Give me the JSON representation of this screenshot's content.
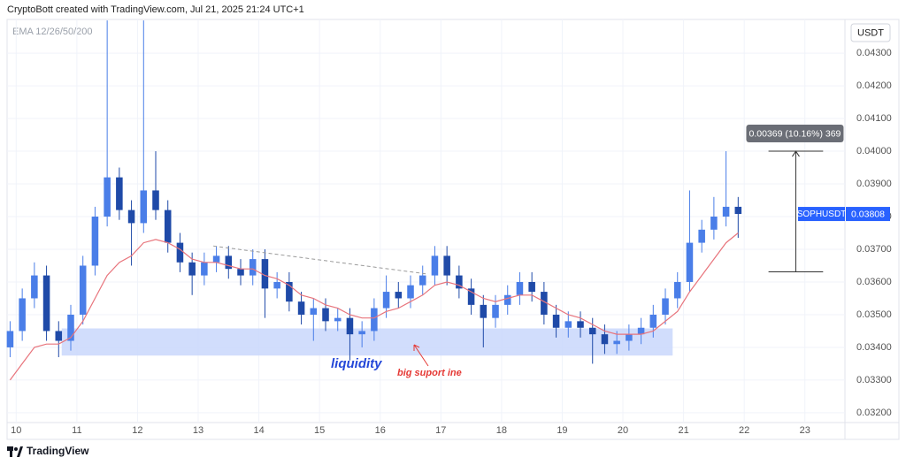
{
  "header": "CryptoBott created with TradingView.com, Jul 21, 2025 21:24 UTC+1",
  "footer": "TradingView",
  "chart_data": {
    "type": "candlestick",
    "currency": "USDT",
    "x": [
      9.9,
      10.1,
      10.3,
      10.5,
      10.7,
      10.9,
      11.1,
      11.3,
      11.5,
      11.7,
      11.9,
      12.1,
      12.3,
      12.5,
      12.7,
      12.9,
      13.1,
      13.3,
      13.5,
      13.7,
      13.9,
      14.1,
      14.3,
      14.5,
      14.7,
      14.9,
      15.1,
      15.3,
      15.5,
      15.7,
      15.9,
      16.1,
      16.3,
      16.5,
      16.7,
      16.9,
      17.1,
      17.3,
      17.5,
      17.7,
      17.9,
      18.1,
      18.3,
      18.5,
      18.7,
      18.9,
      19.1,
      19.3,
      19.5,
      19.7,
      19.9,
      20.1,
      20.3,
      20.5,
      20.7,
      20.9,
      21.1,
      21.3,
      21.5,
      21.7,
      21.9
    ],
    "open": [
      0.034,
      0.0345,
      0.0355,
      0.0362,
      0.0345,
      0.0342,
      0.035,
      0.0365,
      0.038,
      0.0392,
      0.0382,
      0.0378,
      0.0388,
      0.0382,
      0.0372,
      0.0366,
      0.0362,
      0.0366,
      0.0368,
      0.0364,
      0.0362,
      0.0367,
      0.0358,
      0.036,
      0.0354,
      0.035,
      0.0352,
      0.0348,
      0.0349,
      0.0344,
      0.0345,
      0.0352,
      0.0357,
      0.0355,
      0.0359,
      0.0362,
      0.0368,
      0.0362,
      0.0358,
      0.0353,
      0.0349,
      0.0353,
      0.0356,
      0.036,
      0.0357,
      0.035,
      0.0346,
      0.0348,
      0.0346,
      0.0344,
      0.0341,
      0.0342,
      0.0344,
      0.0346,
      0.035,
      0.0355,
      0.036,
      0.0372,
      0.0376,
      0.038,
      0.0383
    ],
    "high": [
      0.0348,
      0.0358,
      0.0366,
      0.0365,
      0.0348,
      0.0353,
      0.0368,
      0.0383,
      0.044,
      0.0395,
      0.0385,
      0.044,
      0.04,
      0.0385,
      0.0375,
      0.0369,
      0.0369,
      0.0371,
      0.0371,
      0.0367,
      0.037,
      0.037,
      0.0363,
      0.0363,
      0.0357,
      0.0355,
      0.0355,
      0.0352,
      0.0352,
      0.0348,
      0.0355,
      0.0362,
      0.036,
      0.0362,
      0.0365,
      0.0371,
      0.0371,
      0.0365,
      0.0361,
      0.0356,
      0.0356,
      0.0359,
      0.0363,
      0.0363,
      0.036,
      0.0353,
      0.0351,
      0.0351,
      0.0349,
      0.0347,
      0.0345,
      0.0347,
      0.0349,
      0.0353,
      0.0358,
      0.0363,
      0.0388,
      0.0379,
      0.0386,
      0.04,
      0.0386
    ],
    "low": [
      0.0337,
      0.0342,
      0.0352,
      0.0342,
      0.0337,
      0.0339,
      0.0347,
      0.0362,
      0.0377,
      0.0379,
      0.0365,
      0.0375,
      0.0379,
      0.0369,
      0.0363,
      0.0356,
      0.0359,
      0.0363,
      0.0361,
      0.0359,
      0.0359,
      0.0349,
      0.0355,
      0.0351,
      0.0347,
      0.0342,
      0.0345,
      0.0345,
      0.0336,
      0.034,
      0.0342,
      0.0349,
      0.0352,
      0.0352,
      0.0356,
      0.0359,
      0.0359,
      0.0355,
      0.035,
      0.034,
      0.0346,
      0.035,
      0.0353,
      0.0354,
      0.0347,
      0.0343,
      0.0343,
      0.0343,
      0.0335,
      0.0338,
      0.0338,
      0.0339,
      0.0341,
      0.0343,
      0.0347,
      0.0352,
      0.0357,
      0.0369,
      0.0373,
      0.0377,
      0.03735
    ],
    "close": [
      0.0345,
      0.0355,
      0.0362,
      0.0345,
      0.0342,
      0.035,
      0.0365,
      0.038,
      0.0392,
      0.0382,
      0.0378,
      0.0388,
      0.0382,
      0.0372,
      0.0366,
      0.0362,
      0.0366,
      0.0368,
      0.0364,
      0.0362,
      0.0367,
      0.0358,
      0.036,
      0.0354,
      0.035,
      0.0352,
      0.0348,
      0.0349,
      0.0344,
      0.0345,
      0.0352,
      0.0357,
      0.0355,
      0.0359,
      0.0362,
      0.0368,
      0.0362,
      0.0358,
      0.0353,
      0.0349,
      0.0353,
      0.0356,
      0.036,
      0.0357,
      0.035,
      0.0346,
      0.0348,
      0.0346,
      0.0344,
      0.0341,
      0.0342,
      0.0344,
      0.0346,
      0.035,
      0.0355,
      0.036,
      0.0372,
      0.0376,
      0.038,
      0.0383,
      0.03808
    ],
    "up_color": "#4a7ee8",
    "down_color": "#1f4aa8",
    "ema": {
      "name": "EMA 12/26/50/200",
      "color": "#e8747c",
      "values": [
        0.033,
        0.0335,
        0.034,
        0.0341,
        0.0341,
        0.0343,
        0.0348,
        0.0355,
        0.0362,
        0.0366,
        0.0368,
        0.0372,
        0.0373,
        0.0372,
        0.037,
        0.0367,
        0.0366,
        0.0366,
        0.0365,
        0.0364,
        0.0364,
        0.0362,
        0.0361,
        0.0359,
        0.0356,
        0.0355,
        0.0353,
        0.0352,
        0.035,
        0.0349,
        0.0349,
        0.0351,
        0.0352,
        0.0354,
        0.0356,
        0.0359,
        0.036,
        0.0359,
        0.0357,
        0.0355,
        0.0354,
        0.0355,
        0.0356,
        0.0356,
        0.0354,
        0.0352,
        0.035,
        0.0349,
        0.0347,
        0.0345,
        0.0344,
        0.0344,
        0.0344,
        0.0345,
        0.0348,
        0.0351,
        0.0357,
        0.0362,
        0.0367,
        0.0372,
        0.0375
      ]
    },
    "xlim": [
      9.85,
      23.66
    ],
    "ylim": [
      0.0317,
      0.04403
    ],
    "xticks": [
      10,
      11,
      12,
      13,
      14,
      15,
      16,
      17,
      18,
      19,
      20,
      21,
      22,
      23
    ],
    "yticks": [
      {
        "value": 0.032,
        "label": "0.03200"
      },
      {
        "value": 0.033,
        "label": "0.03300"
      },
      {
        "value": 0.034,
        "label": "0.03400"
      },
      {
        "value": 0.035,
        "label": "0.03500"
      },
      {
        "value": 0.036,
        "label": "0.03600"
      },
      {
        "value": 0.037,
        "label": "0.03700"
      },
      {
        "value": 0.038,
        "label": "0.03800"
      },
      {
        "value": 0.039,
        "label": "0.03900"
      },
      {
        "value": 0.04,
        "label": "0.04000"
      },
      {
        "value": 0.041,
        "label": "0.04100"
      },
      {
        "value": 0.042,
        "label": "0.04200"
      },
      {
        "value": 0.043,
        "label": "0.04300"
      }
    ],
    "grid": true,
    "price_tag": {
      "symbol": "SOPHUSDT",
      "value": 0.03808,
      "color": "#2962ff"
    },
    "zone": {
      "x": [
        10.75,
        20.82
      ],
      "y": [
        0.03375,
        0.03458
      ],
      "color": "#c9d7fb"
    },
    "trendline": {
      "x": [
        13.25,
        16.75
      ],
      "y": [
        0.0371,
        0.03625
      ]
    },
    "measure": {
      "x": [
        22.4,
        23.3
      ],
      "y": [
        0.03631,
        0.04
      ],
      "label": "0.00369 (10.16%) 369"
    },
    "annotations": {
      "zone_label": "liquidity",
      "support_label": "big suport ine"
    }
  }
}
